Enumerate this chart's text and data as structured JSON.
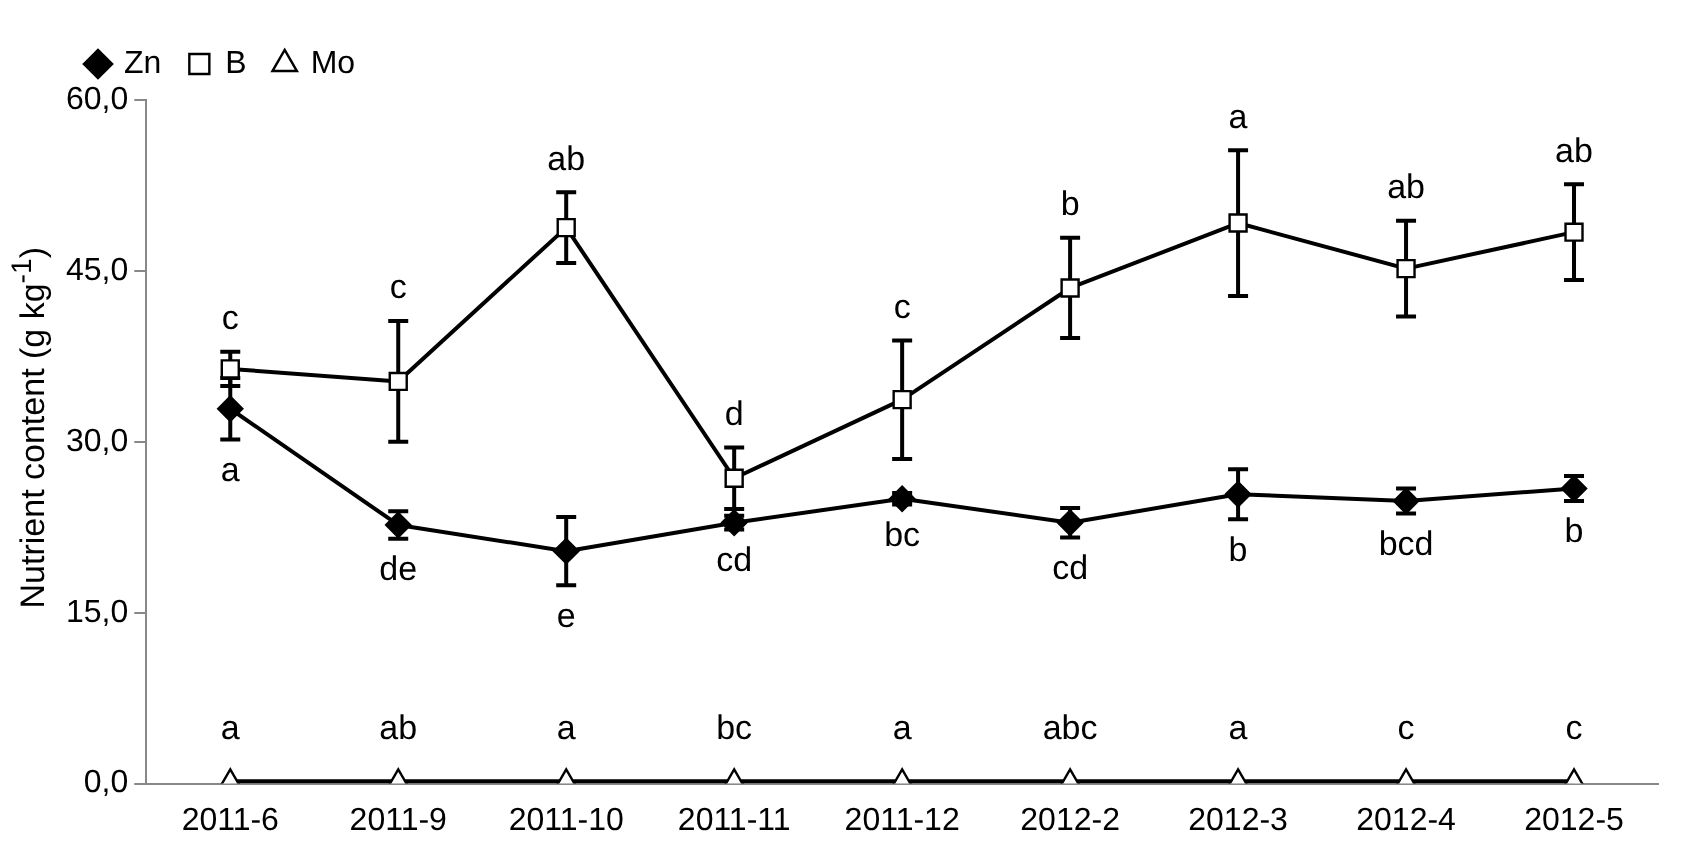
{
  "chart_data": {
    "type": "line",
    "ylabel": "Nutrient content (g kg$^{-1}$)",
    "categories": [
      "2011-6",
      "2011-9",
      "2011-10",
      "2011-11",
      "2011-12",
      "2012-2",
      "2012-3",
      "2012-4",
      "2012-5"
    ],
    "series": [
      {
        "name": "Zn",
        "color": "#000000",
        "marker": "diamond",
        "values": [
          32.9,
          22.7,
          20.4,
          22.9,
          25.0,
          22.9,
          25.4,
          24.8,
          25.9
        ],
        "errors": [
          2.7,
          1.2,
          3.0,
          0.6,
          0.5,
          1.3,
          2.2,
          1.1,
          1.1
        ]
      },
      {
        "name": "B",
        "color": "#000000",
        "marker": "square",
        "values": [
          36.4,
          35.3,
          48.8,
          26.8,
          33.7,
          43.5,
          49.2,
          45.2,
          48.4
        ],
        "errors": [
          1.5,
          5.3,
          3.1,
          2.7,
          5.2,
          4.4,
          6.4,
          4.2,
          4.2
        ]
      },
      {
        "name": "Mo",
        "color": "#000000",
        "marker": "triangle",
        "values": [
          0.2,
          0.2,
          0.2,
          0.2,
          0.2,
          0.2,
          0.2,
          0.2,
          0.2
        ]
      }
    ],
    "ylim": [
      0,
      60
    ],
    "yticks": [
      {
        "value": 0,
        "label": "0,0"
      },
      {
        "value": 15,
        "label": "15,0"
      },
      {
        "value": 30,
        "label": "30,0"
      },
      {
        "value": 45,
        "label": "45,0"
      },
      {
        "value": 60,
        "label": "60,0"
      }
    ],
    "grid": false,
    "legend": "top left",
    "line_style": "solid",
    "annotations": [
      {
        "text": "a",
        "x": "2011-6",
        "y": 32.9
      },
      {
        "text": "de",
        "x": "2011-9",
        "y": 22.7
      },
      {
        "text": "e",
        "x": "2011-10",
        "y": 20.4
      },
      {
        "text": "cd",
        "x": "2011-11",
        "y": 22.9
      },
      {
        "text": "bc",
        "x": "2011-12",
        "y": 25.0
      },
      {
        "text": "cd",
        "x": "2012-2",
        "y": 22.9
      },
      {
        "text": "b",
        "x": "2012-3",
        "y": 25.4
      },
      {
        "text": "bcd",
        "x": "2012-4",
        "y": 24.8
      },
      {
        "text": "b",
        "x": "2012-5",
        "y": 25.9
      },
      {
        "text": "c",
        "x": "2011-6",
        "y": 36.4
      },
      {
        "text": "c",
        "x": "2011-9",
        "y": 35.3
      },
      {
        "text": "ab",
        "x": "2011-10",
        "y": 48.8
      },
      {
        "text": "d",
        "x": "2011-11",
        "y": 26.8
      },
      {
        "text": "c",
        "x": "2011-12",
        "y": 33.7
      },
      {
        "text": "b",
        "x": "2012-2",
        "y": 43.5
      },
      {
        "text": "a",
        "x": "2012-3",
        "y": 49.2
      },
      {
        "text": "ab",
        "x": "2012-4",
        "y": 45.2
      },
      {
        "text": "ab",
        "x": "2012-5",
        "y": 48.4
      },
      {
        "text": "a",
        "x": "2011-6",
        "y": 0.2
      },
      {
        "text": "ab",
        "x": "2011-9",
        "y": 0.2
      },
      {
        "text": "a",
        "x": "2011-10",
        "y": 0.2
      },
      {
        "text": "bc",
        "x": "2011-11",
        "y": 0.2
      },
      {
        "text": "a",
        "x": "2011-12",
        "y": 0.2
      },
      {
        "text": "abc",
        "x": "2012-2",
        "y": 0.2
      },
      {
        "text": "a",
        "x": "2012-3",
        "y": 0.2
      },
      {
        "text": "c",
        "x": "2012-4",
        "y": 0.2
      },
      {
        "text": "c",
        "x": "2012-5",
        "y": 0.2
      }
    ]
  }
}
